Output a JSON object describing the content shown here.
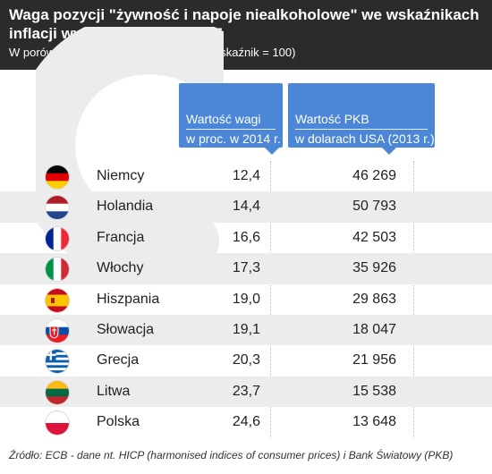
{
  "header": {
    "title": "Waga pozycji \"żywność i napoje niealkoholowe\" we wskaźnikach\ninflacji wybranych państw UE",
    "subtitle": "W porównaniu z PKB per capita (pełen wskaźnik = 100)"
  },
  "columns": {
    "weight": {
      "line1": "Wartość wagi",
      "line2": "w proc. w 2014 r."
    },
    "gdp": {
      "line1": "Wartość PKB",
      "line2": "w dolarach USA (2013 r.)"
    }
  },
  "chart_data": {
    "type": "table",
    "columns": [
      "Wartość wagi w proc. w 2014 r.",
      "Wartość PKB w dolarach USA (2013 r.)"
    ],
    "rows": [
      {
        "country": "Niemcy",
        "flag": "germany-flag-icon",
        "weight": "12,4",
        "gdp": "46 269"
      },
      {
        "country": "Holandia",
        "flag": "netherlands-flag-icon",
        "weight": "14,4",
        "gdp": "50 793"
      },
      {
        "country": "Francja",
        "flag": "france-flag-icon",
        "weight": "16,6",
        "gdp": "42 503"
      },
      {
        "country": "Włochy",
        "flag": "italy-flag-icon",
        "weight": "17,3",
        "gdp": "35 926"
      },
      {
        "country": "Hiszpania",
        "flag": "spain-flag-icon",
        "weight": "19,0",
        "gdp": "29 863"
      },
      {
        "country": "Słowacja",
        "flag": "slovakia-flag-icon",
        "weight": "19,1",
        "gdp": "18 047"
      },
      {
        "country": "Grecja",
        "flag": "greece-flag-icon",
        "weight": "20,3",
        "gdp": "21 956"
      },
      {
        "country": "Litwa",
        "flag": "lithuania-flag-icon",
        "weight": "23,7",
        "gdp": "15 538"
      },
      {
        "country": "Polska",
        "flag": "poland-flag-icon",
        "weight": "24,6",
        "gdp": "13 648"
      }
    ]
  },
  "source": "Źródło: ECB - dane nt. HICP (harmonised indices of consumer prices) i Bank Światowy (PKB)",
  "colors": {
    "header_bg": "#2b2b2b",
    "accent": "#4c86d6",
    "row_shade": "#ececec"
  }
}
